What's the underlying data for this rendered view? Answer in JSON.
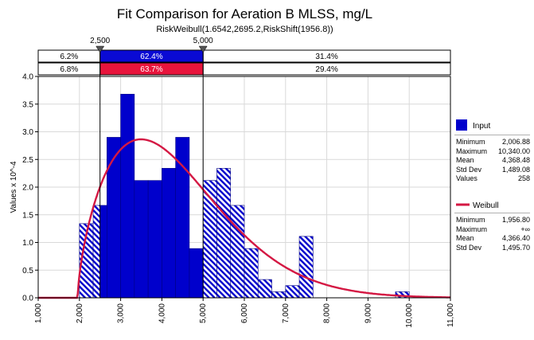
{
  "title": "Fit Comparison for Aeration B MLSS, mg/L",
  "subtitle": "RiskWeibull(1.6542,2695.2,RiskShift(1956.8))",
  "colors": {
    "input_bar": "#0000cc",
    "input_bar_edge": "#000080",
    "fit_line": "#d41843",
    "band_input": "#0a0ad4",
    "band_fit": "#e8143c",
    "grid": "#d9d9d9"
  },
  "delimiters": {
    "left_label": "2,500",
    "right_label": "5,000",
    "left_value": 2500,
    "right_value": 5000
  },
  "probability_bands": {
    "input": [
      "6.2%",
      "62.4%",
      "31.4%"
    ],
    "fit": [
      "6.8%",
      "63.7%",
      "29.4%"
    ]
  },
  "legend": {
    "input": {
      "name": "Input",
      "stats": [
        {
          "label": "Minimum",
          "value": "2,006.88"
        },
        {
          "label": "Maximum",
          "value": "10,340.00"
        },
        {
          "label": "Mean",
          "value": "4,368.48"
        },
        {
          "label": "Std Dev",
          "value": "1,489.08"
        },
        {
          "label": "Values",
          "value": "258"
        }
      ]
    },
    "fit": {
      "name": "Weibull",
      "stats": [
        {
          "label": "Minimum",
          "value": "1,956.80"
        },
        {
          "label": "Maximum",
          "value": "+∞"
        },
        {
          "label": "Mean",
          "value": "4,366.40"
        },
        {
          "label": "Std Dev",
          "value": "1,495.70"
        }
      ]
    }
  },
  "chart_data": {
    "type": "bar",
    "ylabel": "Values x 10^-4",
    "xlim": [
      1000,
      11000
    ],
    "ylim": [
      0,
      4.0
    ],
    "x_ticks": [
      "1,000",
      "2,000",
      "3,000",
      "4,000",
      "5,000",
      "6,000",
      "7,000",
      "8,000",
      "9,000",
      "10,000",
      "11,000"
    ],
    "y_ticks": [
      "0.0",
      "0.5",
      "1.0",
      "1.5",
      "2.0",
      "2.5",
      "3.0",
      "3.5",
      "4.0"
    ],
    "grid": true,
    "bin_width": 333.3,
    "series": [
      {
        "name": "Input",
        "type": "histogram",
        "bin_starts": [
          2000,
          2333,
          2667,
          3000,
          3333,
          3667,
          4000,
          4333,
          4667,
          5000,
          5333,
          5667,
          6000,
          6333,
          6667,
          7000,
          7333,
          7667,
          8000,
          8333,
          8667,
          9000,
          9333,
          9667,
          10000
        ],
        "values": [
          1.34,
          1.67,
          2.9,
          3.68,
          2.12,
          2.12,
          2.34,
          2.9,
          0.89,
          2.12,
          2.34,
          1.67,
          0.89,
          0.33,
          0.11,
          0.22,
          1.11,
          0,
          0,
          0,
          0,
          0,
          0,
          0.11,
          0
        ]
      },
      {
        "name": "Weibull",
        "type": "line",
        "params": {
          "shape": 1.6542,
          "scale": 2695.2,
          "shift": 1956.8
        }
      }
    ]
  }
}
